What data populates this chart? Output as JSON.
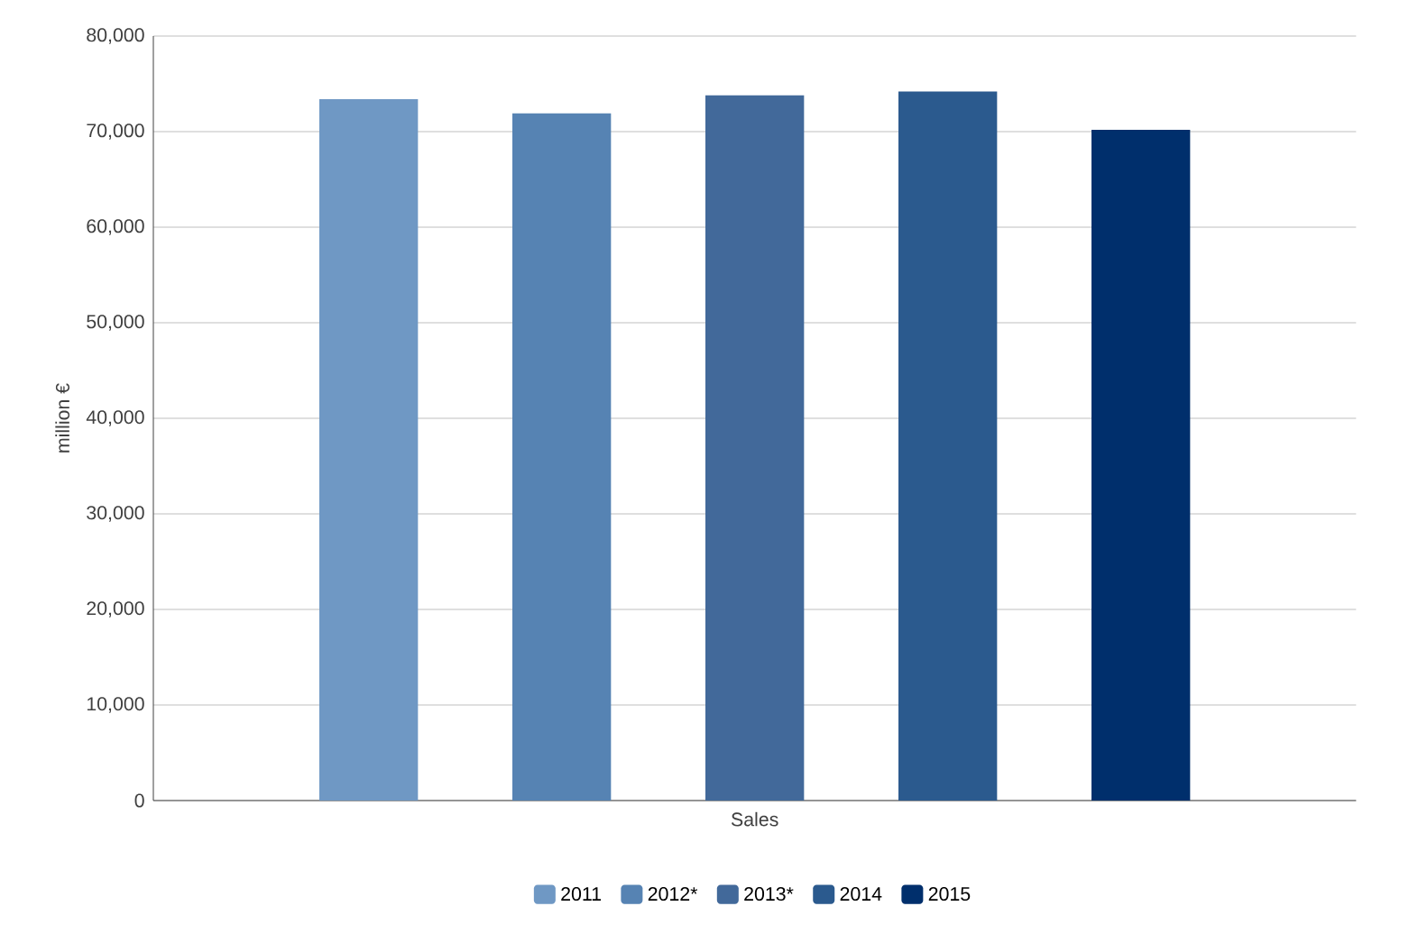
{
  "chart_data": {
    "type": "bar",
    "ylabel": "million €",
    "categories": [
      "Sales"
    ],
    "series": [
      {
        "name": "2011",
        "color": "#6f98c4",
        "values": [
          73400
        ]
      },
      {
        "name": "2012*",
        "color": "#5683b3",
        "values": [
          71900
        ]
      },
      {
        "name": "2013*",
        "color": "#42699a",
        "values": [
          73800
        ]
      },
      {
        "name": "2014",
        "color": "#2b5a8e",
        "values": [
          74200
        ]
      },
      {
        "name": "2015",
        "color": "#002f6c",
        "values": [
          70200
        ]
      }
    ],
    "ylim": [
      0,
      80000
    ],
    "yticks": [
      {
        "value": 0,
        "label": "0"
      },
      {
        "value": 10000,
        "label": "10,000"
      },
      {
        "value": 20000,
        "label": "20,000"
      },
      {
        "value": 30000,
        "label": "30,000"
      },
      {
        "value": 40000,
        "label": "40,000"
      },
      {
        "value": 50000,
        "label": "50,000"
      },
      {
        "value": 60000,
        "label": "60,000"
      },
      {
        "value": 70000,
        "label": "70,000"
      },
      {
        "value": 80000,
        "label": "80,000"
      }
    ],
    "grid": "y",
    "legend": "bottom"
  }
}
